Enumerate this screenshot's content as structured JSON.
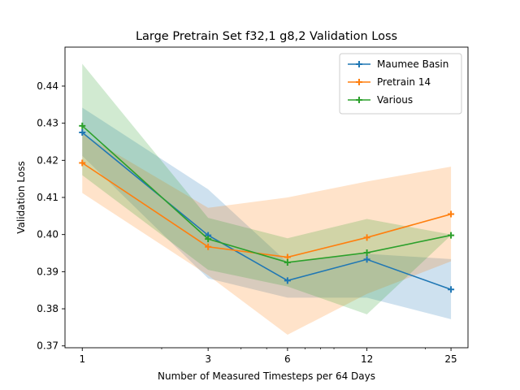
{
  "chart_data": {
    "type": "line",
    "title": "Large Pretrain Set f32,1 g8,2 Validation Loss",
    "xlabel": "Number of Measured Timesteps per 64 Days",
    "ylabel": "Validation Loss",
    "x_scale": "log",
    "x": [
      1,
      3,
      6,
      12,
      25
    ],
    "x_tick_labels": [
      "1",
      "3",
      "6",
      "12",
      "25"
    ],
    "xlim": [
      0.86,
      29.0
    ],
    "ylim": [
      0.3695,
      0.4505
    ],
    "y_ticks": [
      0.37,
      0.38,
      0.39,
      0.4,
      0.41,
      0.42,
      0.43,
      0.44
    ],
    "y_tick_labels": [
      "0.37",
      "0.38",
      "0.39",
      "0.40",
      "0.41",
      "0.42",
      "0.43",
      "0.44"
    ],
    "legend_position": "top-right",
    "series": [
      {
        "name": "Maumee Basin",
        "color": "#1f77b4",
        "values": [
          0.4275,
          0.3998,
          0.3876,
          0.3933,
          0.3852
        ],
        "band_upper": [
          0.4342,
          0.4122,
          0.3925,
          0.3948,
          0.3934
        ],
        "band_lower": [
          0.4212,
          0.3882,
          0.383,
          0.383,
          0.3772
        ]
      },
      {
        "name": "Pretrain 14",
        "color": "#ff7f0e",
        "values": [
          0.4193,
          0.3967,
          0.3939,
          0.3992,
          0.4055
        ],
        "band_upper": [
          0.4272,
          0.4072,
          0.41,
          0.4143,
          0.4183
        ],
        "band_lower": [
          0.4112,
          0.389,
          0.373,
          0.384,
          0.3928
        ]
      },
      {
        "name": "Various",
        "color": "#2ca02c",
        "values": [
          0.4293,
          0.3988,
          0.3925,
          0.3951,
          0.3998
        ],
        "band_upper": [
          0.446,
          0.4045,
          0.399,
          0.4042,
          0.4
        ],
        "band_lower": [
          0.416,
          0.3905,
          0.386,
          0.3785,
          0.3998
        ]
      }
    ]
  }
}
